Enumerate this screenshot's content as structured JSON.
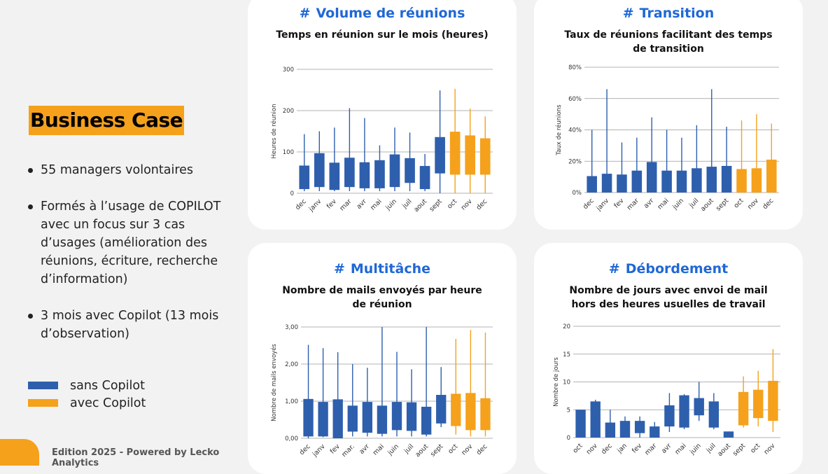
{
  "left": {
    "title": "Business Case",
    "bullets": [
      "55 managers volontaires",
      "Formés à l’usage de COPILOT avec un focus sur 3 cas d’usages (amélioration des réunions, écriture, recherche d’information)",
      "3 mois avec Copilot (13 mois d’observation)"
    ],
    "legend": [
      {
        "label": "sans Copilot",
        "color": "#2e5fad"
      },
      {
        "label": "avec Copilot",
        "color": "#f5a11c"
      }
    ],
    "footer": "Edition 2025 - Powered by Lecko Analytics"
  },
  "colors": {
    "blue": "#2e5fad",
    "orange": "#f5a11c",
    "heading": "#1f68d6"
  },
  "cards": [
    {
      "hash": "#",
      "heading": "Volume de réunions",
      "subtitle": "Temps en réunion sur le mois (heures)"
    },
    {
      "hash": "#",
      "heading": "Transition",
      "subtitle": "Taux de réunions facilitant des temps de transition"
    },
    {
      "hash": "#",
      "heading": "Multitâche",
      "subtitle": "Nombre de mails envoyés par heure de réunion"
    },
    {
      "hash": "#",
      "heading": "Débordement",
      "subtitle": "Nombre de jours avec envoi de mail hors des heures usuelles de travail"
    }
  ],
  "chart_data": [
    {
      "type": "box",
      "title": "Temps en réunion sur le mois (heures)",
      "ylabel": "Heures de réunion",
      "ylim": [
        0,
        300
      ],
      "yticks": [
        0,
        100,
        200,
        300
      ],
      "ytick_labels": [
        "0",
        "100",
        "200",
        "300"
      ],
      "categories": [
        "dec",
        "janv",
        "fev",
        "mar",
        "avr",
        "mai",
        "juin",
        "juil",
        "aout",
        "sept",
        "oct",
        "nov",
        "dec"
      ],
      "series_flag": [
        "sans",
        "sans",
        "sans",
        "sans",
        "sans",
        "sans",
        "sans",
        "sans",
        "sans",
        "sans",
        "avec",
        "avec",
        "avec"
      ],
      "min": [
        5,
        5,
        5,
        5,
        5,
        5,
        5,
        5,
        5,
        0,
        0,
        0,
        0
      ],
      "q1": [
        10,
        15,
        8,
        15,
        12,
        12,
        15,
        25,
        10,
        48,
        45,
        45,
        45
      ],
      "q3": [
        67,
        97,
        74,
        86,
        75,
        80,
        94,
        85,
        66,
        136,
        149,
        140,
        133
      ],
      "max": [
        143,
        150,
        159,
        206,
        182,
        116,
        159,
        147,
        95,
        249,
        253,
        205,
        186
      ]
    },
    {
      "type": "box",
      "title": "Taux de réunions facilitant des temps de transition",
      "ylabel": "Taux de réunions",
      "ylim": [
        0,
        80
      ],
      "yticks": [
        0,
        20,
        40,
        60,
        80
      ],
      "ytick_labels": [
        "0%",
        "20%",
        "40%",
        "60%",
        "80%"
      ],
      "categories": [
        "dec",
        "janv",
        "fev",
        "mar",
        "avr",
        "mai",
        "juin",
        "juil",
        "aout",
        "sept",
        "oct",
        "nov",
        "dec"
      ],
      "series_flag": [
        "sans",
        "sans",
        "sans",
        "sans",
        "sans",
        "sans",
        "sans",
        "sans",
        "sans",
        "sans",
        "avec",
        "avec",
        "avec"
      ],
      "min": [
        0,
        0,
        0,
        0,
        0,
        0,
        0,
        0,
        0,
        0,
        0,
        0,
        0
      ],
      "q1": [
        0,
        0,
        0,
        0,
        0,
        0,
        0,
        0,
        0,
        0,
        0,
        0,
        0
      ],
      "q3": [
        10.5,
        12,
        11.5,
        14,
        19.5,
        14,
        14,
        15.5,
        16.5,
        17,
        15,
        15.5,
        21
      ],
      "max": [
        40,
        66,
        32,
        35,
        48,
        40,
        35,
        43,
        66,
        42,
        46,
        50,
        44
      ]
    },
    {
      "type": "box",
      "title": "Nombre de mails envoyés par heure de réunion",
      "ylabel": "Nombre de mails envoyés",
      "ylim": [
        0,
        3
      ],
      "yticks": [
        0,
        1,
        2,
        3
      ],
      "ytick_labels": [
        "0,00",
        "1,00",
        "2,00",
        "3,00"
      ],
      "categories": [
        "dec",
        "janv",
        "fev",
        "mar.",
        "avr",
        "mai",
        "juin",
        "juil",
        "aout",
        "sept",
        "oct",
        "nov",
        "dec"
      ],
      "series_flag": [
        "sans",
        "sans",
        "sans",
        "sans",
        "sans",
        "sans",
        "sans",
        "sans",
        "sans",
        "sans",
        "avec",
        "avec",
        "avec"
      ],
      "min": [
        0,
        0.03,
        0,
        0.05,
        0.05,
        0.05,
        0.05,
        0.05,
        0.05,
        0.3,
        0.1,
        0.05,
        0.05
      ],
      "q1": [
        0.05,
        0.05,
        0,
        0.18,
        0.15,
        0.12,
        0.22,
        0.2,
        0.1,
        0.4,
        0.33,
        0.22,
        0.22
      ],
      "q3": [
        1.06,
        0.98,
        1.05,
        0.88,
        0.98,
        0.88,
        0.98,
        0.97,
        0.85,
        1.17,
        1.2,
        1.22,
        1.08
      ],
      "max": [
        2.52,
        2.43,
        2.32,
        2.0,
        1.9,
        3.0,
        2.33,
        1.86,
        3.0,
        1.92,
        2.68,
        2.92,
        2.85
      ]
    },
    {
      "type": "box",
      "title": "Nombre de jours avec envoi de mail hors des heures usuelles de travail",
      "ylabel": "Nombre de jours",
      "ylim": [
        0,
        20
      ],
      "yticks": [
        0,
        5,
        10,
        15,
        20
      ],
      "ytick_labels": [
        "0",
        "5",
        "10",
        "15",
        "20"
      ],
      "categories": [
        "oct",
        "nov",
        "dec",
        "jan",
        "fev",
        "mar",
        "avr",
        "mai",
        "juin",
        "juil",
        "aout",
        "sept",
        "oct",
        "nov"
      ],
      "series_flag": [
        "sans",
        "sans",
        "sans",
        "sans",
        "sans",
        "sans",
        "sans",
        "sans",
        "sans",
        "sans",
        "sans",
        "avec",
        "avec",
        "avec"
      ],
      "min": [
        0,
        0,
        0,
        0,
        0,
        0,
        1,
        1.5,
        3,
        1.5,
        0,
        1.8,
        2,
        1
      ],
      "q1": [
        0,
        0,
        0,
        0,
        0.8,
        0,
        2,
        1.8,
        4,
        1.8,
        0,
        2.2,
        3.5,
        3
      ],
      "q3": [
        5,
        6.5,
        2.7,
        3,
        3,
        2,
        5.8,
        7.6,
        7.1,
        6.5,
        1.1,
        8.2,
        8.6,
        10.2
      ],
      "max": [
        5,
        6.8,
        5,
        3.8,
        3.8,
        2.8,
        8,
        7.8,
        10,
        8,
        1.1,
        11,
        12,
        15.9
      ]
    }
  ]
}
